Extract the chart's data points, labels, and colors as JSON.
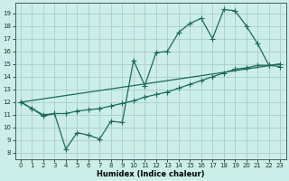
{
  "xlabel": "Humidex (Indice chaleur)",
  "bg_color": "#cceee8",
  "grid_color": "#aacccc",
  "line_color": "#1a6b5a",
  "xlim": [
    -0.5,
    23.5
  ],
  "ylim": [
    7.5,
    19.8
  ],
  "xticks": [
    0,
    1,
    2,
    3,
    4,
    5,
    6,
    7,
    8,
    9,
    10,
    11,
    12,
    13,
    14,
    15,
    16,
    17,
    18,
    19,
    20,
    21,
    22,
    23
  ],
  "yticks": [
    8,
    9,
    10,
    11,
    12,
    13,
    14,
    15,
    16,
    17,
    18,
    19
  ],
  "line1_x": [
    0,
    1,
    2,
    3,
    4,
    5,
    6,
    7,
    8,
    9,
    10,
    11,
    12,
    13,
    14,
    15,
    16,
    17,
    18,
    19,
    20,
    21,
    22,
    23
  ],
  "line1_y": [
    12.0,
    11.5,
    10.9,
    11.1,
    8.3,
    9.6,
    9.4,
    9.1,
    10.5,
    10.4,
    15.3,
    13.3,
    15.9,
    16.0,
    17.5,
    18.2,
    18.6,
    17.0,
    19.3,
    19.2,
    18.0,
    16.6,
    14.9,
    14.8
  ],
  "line2_x": [
    0,
    23
  ],
  "line2_y": [
    12.0,
    15.0
  ],
  "line3_x": [
    0,
    1,
    2,
    3,
    4,
    5,
    6,
    7,
    8,
    9,
    10,
    11,
    12,
    13,
    14,
    15,
    16,
    17,
    18,
    19,
    20,
    21,
    22,
    23
  ],
  "line3_y": [
    12.0,
    11.5,
    11.0,
    11.1,
    11.1,
    11.3,
    11.4,
    11.5,
    11.7,
    11.9,
    12.1,
    12.4,
    12.6,
    12.8,
    13.1,
    13.4,
    13.7,
    14.0,
    14.3,
    14.6,
    14.7,
    14.9,
    14.9,
    15.0
  ]
}
